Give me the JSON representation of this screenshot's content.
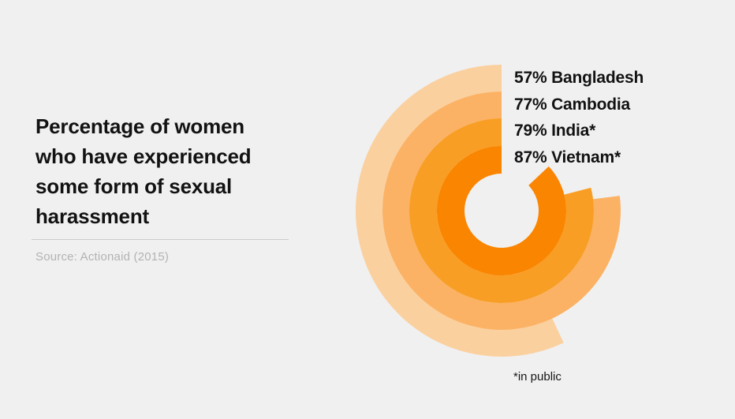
{
  "app": {
    "background": "#f0f0f1"
  },
  "panel": {
    "title_lines": [
      "Percentage of women",
      "who have experienced",
      "some form of sexual",
      "harassment"
    ],
    "source": "Source: Actionaid (2015)"
  },
  "chart_data": {
    "type": "radial-bar",
    "title": "Percentage of women who have experienced some form of sexual harassment",
    "source": "Source: Actionaid (2015)",
    "unit": "%",
    "max": 100,
    "start_angle": "12-o-clock",
    "direction": "counterclockwise",
    "ring_order": "outer-to-inner",
    "categories": [
      "Bangladesh",
      "Cambodia",
      "India",
      "Vietnam"
    ],
    "values": [
      57,
      77,
      79,
      87
    ],
    "series": [
      {
        "label": "Bangladesh",
        "value": 57,
        "legend": "57% Bangladesh",
        "color": "#fbd09f"
      },
      {
        "label": "Cambodia",
        "value": 77,
        "legend": "77% Cambodia",
        "color": "#fbb264"
      },
      {
        "label": "India",
        "value": 79,
        "legend": "79% India*",
        "color": "#f99e25"
      },
      {
        "label": "Vietnam",
        "value": 87,
        "legend": "87% Vietnam*",
        "color": "#fa8500"
      }
    ],
    "legend_position": "top-right",
    "footnote": "*in public"
  }
}
